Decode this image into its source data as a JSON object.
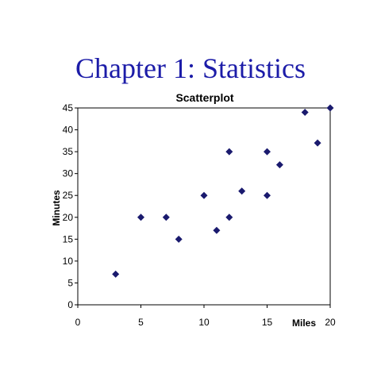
{
  "page": {
    "title": "Chapter 1: Statistics"
  },
  "chart_data": {
    "type": "scatter",
    "title": "Scatterplot",
    "xlabel": "Miles",
    "ylabel": "Minutes",
    "xlim": [
      0,
      20
    ],
    "ylim": [
      0,
      45
    ],
    "xticks": [
      "0",
      "5",
      "10",
      "15",
      "20"
    ],
    "yticks": [
      "0",
      "5",
      "10",
      "15",
      "20",
      "25",
      "30",
      "35",
      "40",
      "45"
    ],
    "grid": false,
    "marker": "diamond",
    "marker_color": "#1a1a6e",
    "points": [
      {
        "x": 3,
        "y": 7
      },
      {
        "x": 5,
        "y": 20
      },
      {
        "x": 7,
        "y": 20
      },
      {
        "x": 8,
        "y": 15
      },
      {
        "x": 10,
        "y": 25
      },
      {
        "x": 11,
        "y": 17
      },
      {
        "x": 12,
        "y": 35
      },
      {
        "x": 12,
        "y": 20
      },
      {
        "x": 13,
        "y": 26
      },
      {
        "x": 15,
        "y": 35
      },
      {
        "x": 15,
        "y": 25
      },
      {
        "x": 16,
        "y": 32
      },
      {
        "x": 18,
        "y": 44
      },
      {
        "x": 19,
        "y": 37
      },
      {
        "x": 20,
        "y": 45
      }
    ]
  }
}
